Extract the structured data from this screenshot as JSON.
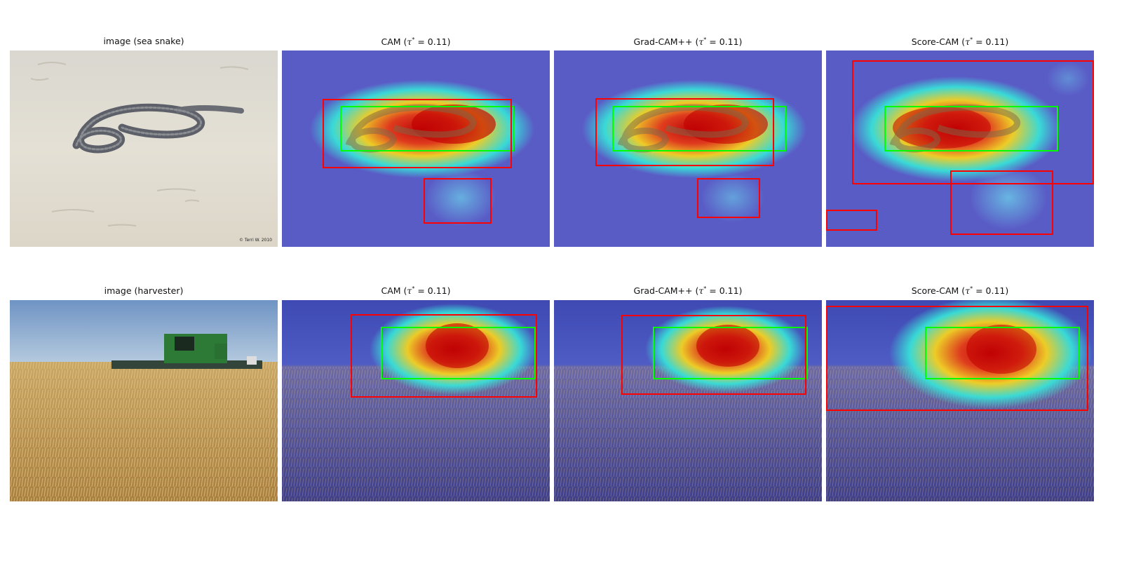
{
  "figure": {
    "rows": [
      {
        "class_name": "sea snake",
        "input_title_prefix": "image (",
        "input_title_suffix": ")",
        "copyright": "© Terri W. 2010",
        "methods": [
          {
            "name": "CAM",
            "tau": "0.11"
          },
          {
            "name": "Grad-CAM++",
            "tau": "0.11"
          },
          {
            "name": "Score-CAM",
            "tau": "0.11"
          }
        ]
      },
      {
        "class_name": "harvester",
        "input_title_prefix": "image (",
        "input_title_suffix": ")",
        "methods": [
          {
            "name": "CAM",
            "tau": "0.11"
          },
          {
            "name": "Grad-CAM++",
            "tau": "0.11"
          },
          {
            "name": "Score-CAM",
            "tau": "0.11"
          }
        ]
      }
    ],
    "tau_symbol": "τ",
    "tau_superscript": "*",
    "colors": {
      "predicted_box": "#ff0000",
      "ground_truth_box": "#00ff00",
      "heatmap_low": "#3a3ad8",
      "heatmap_high": "#d80000"
    }
  }
}
